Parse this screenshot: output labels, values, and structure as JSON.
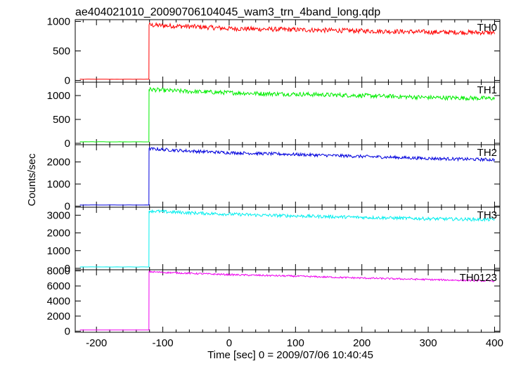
{
  "title": "ae404021010_20090706104045_wam3_trn_4band_long.qdp",
  "xlabel": "Time [sec] 0 = 2009/07/06 10:40:45",
  "ylabel": "Counts/sec",
  "chart_data": {
    "type": "line",
    "title": "ae404021010_20090706104045_wam3_trn_4band_long.qdp",
    "xlabel": "Time [sec] 0 = 2009/07/06 10:40:45",
    "ylabel": "Counts/sec",
    "xlim": [
      -232,
      408
    ],
    "x_ticks": [
      -200,
      -100,
      0,
      100,
      200,
      300,
      400
    ],
    "grid": false,
    "panels": [
      {
        "name": "TH0",
        "color": "#ff0000",
        "ylim": [
          -30,
          1030
        ],
        "y_ticks": [
          0,
          500,
          1000
        ],
        "pre_level": 20,
        "onset_x": -121,
        "x": [
          -121,
          -100,
          -50,
          0,
          50,
          100,
          200,
          300,
          400
        ],
        "y": [
          940,
          930,
          910,
          880,
          870,
          860,
          840,
          820,
          810
        ],
        "noise": 40
      },
      {
        "name": "TH1",
        "color": "#00ee00",
        "ylim": [
          -30,
          1280
        ],
        "y_ticks": [
          0,
          500,
          1000
        ],
        "pre_level": 30,
        "onset_x": -121,
        "x": [
          -121,
          -100,
          -50,
          0,
          50,
          100,
          200,
          300,
          400
        ],
        "y": [
          1130,
          1110,
          1080,
          1060,
          1040,
          1030,
          1000,
          960,
          940
        ],
        "noise": 45
      },
      {
        "name": "TH2",
        "color": "#0000dd",
        "ylim": [
          -50,
          2780
        ],
        "y_ticks": [
          0,
          1000,
          2000
        ],
        "pre_level": 50,
        "onset_x": -121,
        "x": [
          -121,
          -100,
          -50,
          0,
          50,
          100,
          200,
          300,
          400
        ],
        "y": [
          2600,
          2560,
          2480,
          2420,
          2380,
          2340,
          2250,
          2160,
          2100
        ],
        "noise": 70
      },
      {
        "name": "TH3",
        "color": "#00eeee",
        "ylim": [
          -80,
          3450
        ],
        "y_ticks": [
          0,
          1000,
          2000,
          3000
        ],
        "pre_level": 80,
        "onset_x": -121,
        "x": [
          -121,
          -100,
          -50,
          0,
          50,
          100,
          200,
          300,
          400
        ],
        "y": [
          3250,
          3200,
          3120,
          3060,
          3000,
          2960,
          2880,
          2800,
          2750
        ],
        "noise": 90
      },
      {
        "name": "TH0123",
        "color": "#ee00ee",
        "ylim": [
          -150,
          8150
        ],
        "y_ticks": [
          0,
          2000,
          4000,
          6000,
          8000
        ],
        "pre_level": 150,
        "onset_x": -121,
        "x": [
          -121,
          -100,
          -50,
          0,
          50,
          100,
          200,
          300,
          400
        ],
        "y": [
          7900,
          7800,
          7650,
          7500,
          7400,
          7300,
          7050,
          6850,
          6650
        ],
        "noise": 110
      }
    ]
  }
}
